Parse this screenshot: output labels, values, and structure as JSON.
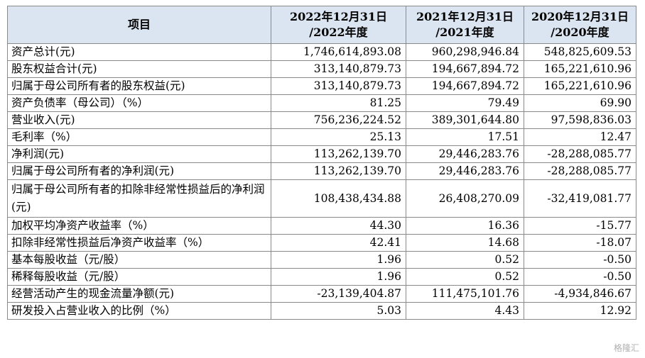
{
  "table": {
    "headers": [
      "项目",
      "2022年12月31日\n/2022年度",
      "2021年12月31日\n/2021年度",
      "2020年12月31日\n/2020年度"
    ],
    "rows": [
      [
        "资产总计(元)",
        "1,746,614,893.08",
        "960,298,946.84",
        "548,825,609.53"
      ],
      [
        "股东权益合计(元)",
        "313,140,879.73",
        "194,667,894.72",
        "165,221,610.96"
      ],
      [
        "归属于母公司所有者的股东权益(元)",
        "313,140,879.73",
        "194,667,894.72",
        "165,221,610.96"
      ],
      [
        "资产负债率（母公司）（%）",
        "81.25",
        "79.49",
        "69.90"
      ],
      [
        "营业收入(元)",
        "756,236,224.52",
        "389,301,644.80",
        "97,598,836.03"
      ],
      [
        "毛利率（%）",
        "25.13",
        "17.51",
        "12.47"
      ],
      [
        "净利润(元)",
        "113,262,139.70",
        "29,446,283.76",
        "-28,288,085.77"
      ],
      [
        "归属于母公司所有者的净利润(元)",
        "113,262,139.70",
        "29,446,283.76",
        "-28,288,085.77"
      ],
      [
        "归属于母公司所有者的扣除非经常性损益后的净利润(元)",
        "108,438,434.88",
        "26,408,270.09",
        "-32,419,081.77"
      ],
      [
        "加权平均净资产收益率（%）",
        "44.30",
        "16.36",
        "-15.77"
      ],
      [
        "扣除非经常性损益后净资产收益率（%）",
        "42.41",
        "14.68",
        "-18.07"
      ],
      [
        "基本每股收益（元/股）",
        "1.96",
        "0.52",
        "-0.50"
      ],
      [
        "稀释每股收益（元/股）",
        "1.96",
        "0.52",
        "-0.50"
      ],
      [
        "经营活动产生的现金流量净额(元)",
        "-23,139,404.87",
        "111,475,101.76",
        "-4,934,846.67"
      ],
      [
        "研发投入占营业收入的比例（%）",
        "5.03",
        "4.43",
        "12.92"
      ]
    ]
  },
  "watermark": "格隆汇"
}
